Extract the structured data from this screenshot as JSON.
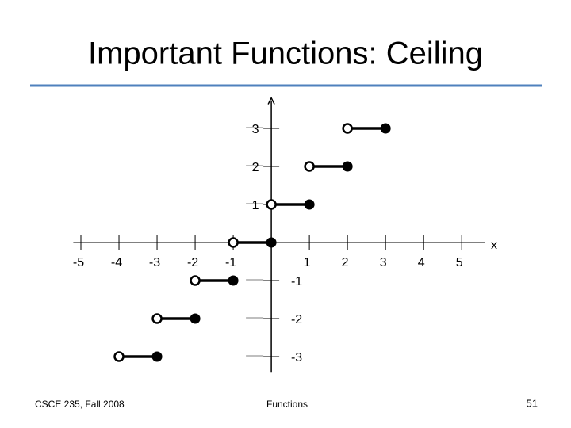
{
  "slide": {
    "title": "Important Functions: Ceiling",
    "footer_left": "CSCE 235, Fall 2008",
    "footer_center": "Functions",
    "page_number": "51"
  },
  "chart_data": {
    "type": "step",
    "x_label": "x",
    "segments": [
      {
        "from": -4,
        "to": -3,
        "value": -3
      },
      {
        "from": -3,
        "to": -2,
        "value": -2
      },
      {
        "from": -2,
        "to": -1,
        "value": -1
      },
      {
        "from": -1,
        "to": 0,
        "value": 0
      },
      {
        "from": 0,
        "to": 1,
        "value": 1
      },
      {
        "from": 1,
        "to": 2,
        "value": 2
      },
      {
        "from": 2,
        "to": 3,
        "value": 3
      }
    ],
    "color": "#000000",
    "xlim": [
      -5.2,
      5.6
    ],
    "ylim": [
      -3.4,
      3.8
    ],
    "xticks": [
      -5,
      -4,
      -3,
      -2,
      -1,
      1,
      2,
      3,
      4,
      5
    ],
    "yticks": [
      3,
      2,
      1,
      -1,
      -2,
      -3
    ]
  }
}
